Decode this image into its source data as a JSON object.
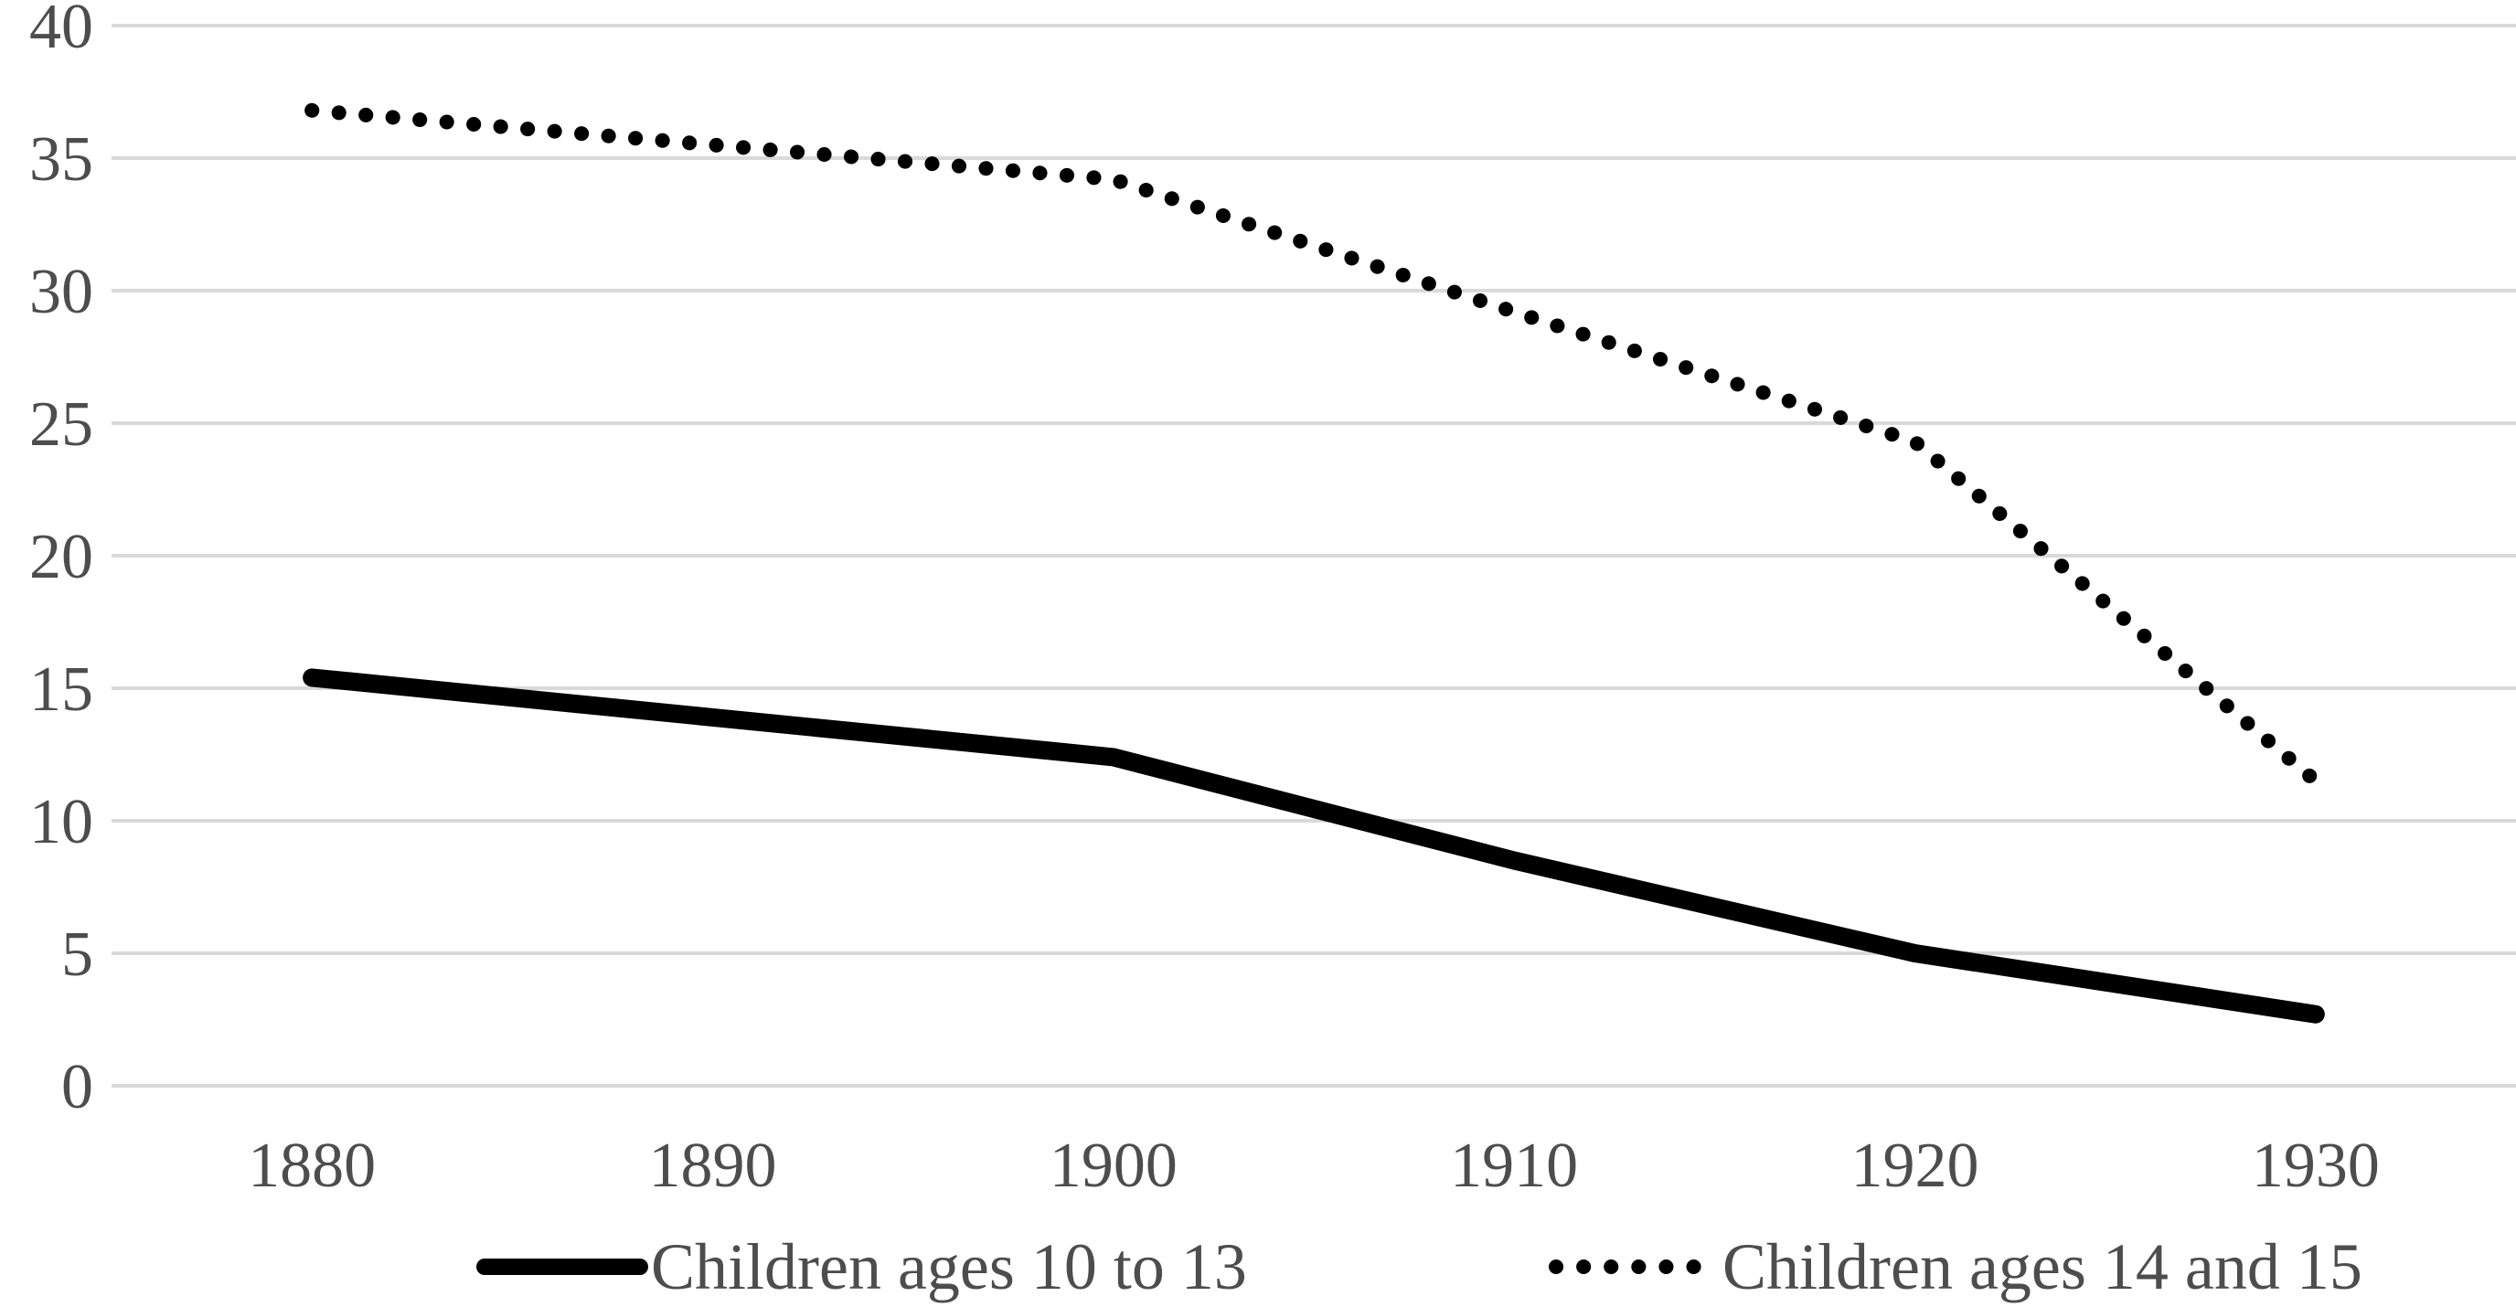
{
  "figure": {
    "background": "#ffffff"
  },
  "chart_data": {
    "type": "line",
    "title": "",
    "xlabel": "",
    "ylabel": "",
    "categories": [
      "1880",
      "1890",
      "1900",
      "1910",
      "1920",
      "1930"
    ],
    "series": [
      {
        "name": "Children ages 10 to 13",
        "style": "solid",
        "color": "#000000",
        "values": [
          15.4,
          13.9,
          12.4,
          8.5,
          5.0,
          2.7
        ]
      },
      {
        "name": "Children ages 14 and 15",
        "style": "dotted",
        "color": "#000000",
        "values": [
          36.8,
          35.5,
          34.2,
          29.2,
          24.3,
          11.5
        ]
      }
    ],
    "y_axis": {
      "min": 0,
      "max": 40,
      "step": 5,
      "tick_labels": [
        "0",
        "5",
        "10",
        "15",
        "20",
        "25",
        "30",
        "35",
        "40"
      ]
    },
    "x_axis": {
      "tick_labels": [
        "1880",
        "1890",
        "1900",
        "1910",
        "1920",
        "1930"
      ]
    },
    "grid": true,
    "legend_position": "bottom",
    "legend": {
      "items": [
        {
          "label": "Children ages 10 to 13",
          "swatch": "solid-line"
        },
        {
          "label": "Children ages 14 and 15",
          "swatch": "dotted-line"
        }
      ]
    },
    "colors": {
      "gridline": "#d9d9d9",
      "axis_text": "#4d4d4d",
      "series": "#000000"
    },
    "ylim": [
      0,
      40
    ]
  }
}
